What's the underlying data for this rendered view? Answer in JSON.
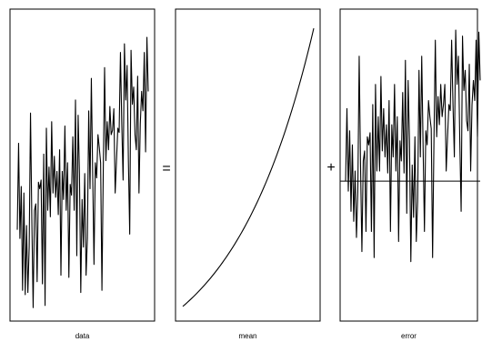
{
  "chart_data": [
    {
      "type": "line",
      "xlabel": "data",
      "series": [
        {
          "values": [
            0.38,
            0.78,
            0.34,
            0.58,
            0.1,
            0.55,
            0.08,
            0.4,
            0.09,
            0.3,
            0.92,
            0.43,
            0.02,
            0.47,
            0.5,
            0.14,
            0.6,
            0.57,
            0.61,
            0.13,
            0.73,
            0.03,
            0.85,
            0.47,
            0.67,
            0.44,
            0.88,
            0.55,
            0.72,
            0.53,
            0.65,
            0.45,
            0.75,
            0.17,
            0.65,
            0.52,
            0.86,
            0.47,
            0.69,
            0.16,
            0.59,
            0.54,
            0.81,
            0.47,
            0.98,
            0.26,
            0.91,
            0.64,
            0.09,
            0.52,
            0.3,
            0.64,
            0.17,
            0.34,
            0.93,
            0.57,
            1.08,
            0.64,
            0.22,
            0.69,
            0.62,
            0.82,
            0.76,
            0.69,
            0.1,
            0.65,
            1.13,
            0.7,
            0.88,
            0.75,
            0.95,
            0.82,
            0.84,
            0.94,
            0.55,
            0.7,
            0.85,
            0.83,
            1.2,
            0.87,
            0.61,
            1.24,
            0.98,
            1.14,
            0.7,
            0.36,
            1.21,
            0.96,
            1.04,
            0.82,
            0.75,
            1.09,
            0.55,
            0.87,
            1.02,
            0.93,
            1.2,
            0.74,
            1.27,
            1.02
          ]
        }
      ],
      "ylim": [
        0,
        1.35
      ]
    },
    {
      "type": "line",
      "xlabel": "mean",
      "series": [
        {
          "function": "exponential",
          "start": 0.0,
          "end": 1.0
        }
      ],
      "ylim": [
        -0.02,
        1.03
      ]
    },
    {
      "type": "line",
      "xlabel": "error",
      "series": [
        {
          "values": [
            0.0,
            0.36,
            -0.05,
            0.25,
            -0.15,
            0.18,
            -0.2,
            0.05,
            -0.28,
            -0.05,
            0.62,
            0.08,
            -0.35,
            0.1,
            0.15,
            -0.25,
            0.22,
            0.18,
            0.24,
            -0.25,
            0.38,
            -0.38,
            0.48,
            0.05,
            0.32,
            0.05,
            0.52,
            0.15,
            0.36,
            0.12,
            0.28,
            0.04,
            0.4,
            -0.25,
            0.28,
            0.12,
            0.48,
            0.05,
            0.32,
            -0.3,
            0.2,
            0.1,
            0.44,
            0.04,
            0.6,
            -0.16,
            0.5,
            0.2,
            -0.4,
            0.08,
            -0.18,
            0.22,
            -0.3,
            -0.1,
            0.55,
            0.12,
            0.62,
            0.18,
            -0.25,
            0.25,
            0.18,
            0.4,
            0.32,
            0.26,
            -0.38,
            0.2,
            0.7,
            0.22,
            0.42,
            0.28,
            0.48,
            0.32,
            0.38,
            0.48,
            0.05,
            0.22,
            0.38,
            0.35,
            0.7,
            0.38,
            0.12,
            0.75,
            0.48,
            0.62,
            0.2,
            -0.15,
            0.72,
            0.45,
            0.55,
            0.3,
            0.25,
            0.58,
            0.05,
            0.38,
            0.5,
            0.4,
            0.7,
            0.22,
            0.74,
            0.5
          ]
        }
      ],
      "reference_line": 0,
      "ylim": [
        -0.65,
        0.8
      ]
    }
  ],
  "operators": {
    "equals": "=",
    "plus": "+"
  }
}
